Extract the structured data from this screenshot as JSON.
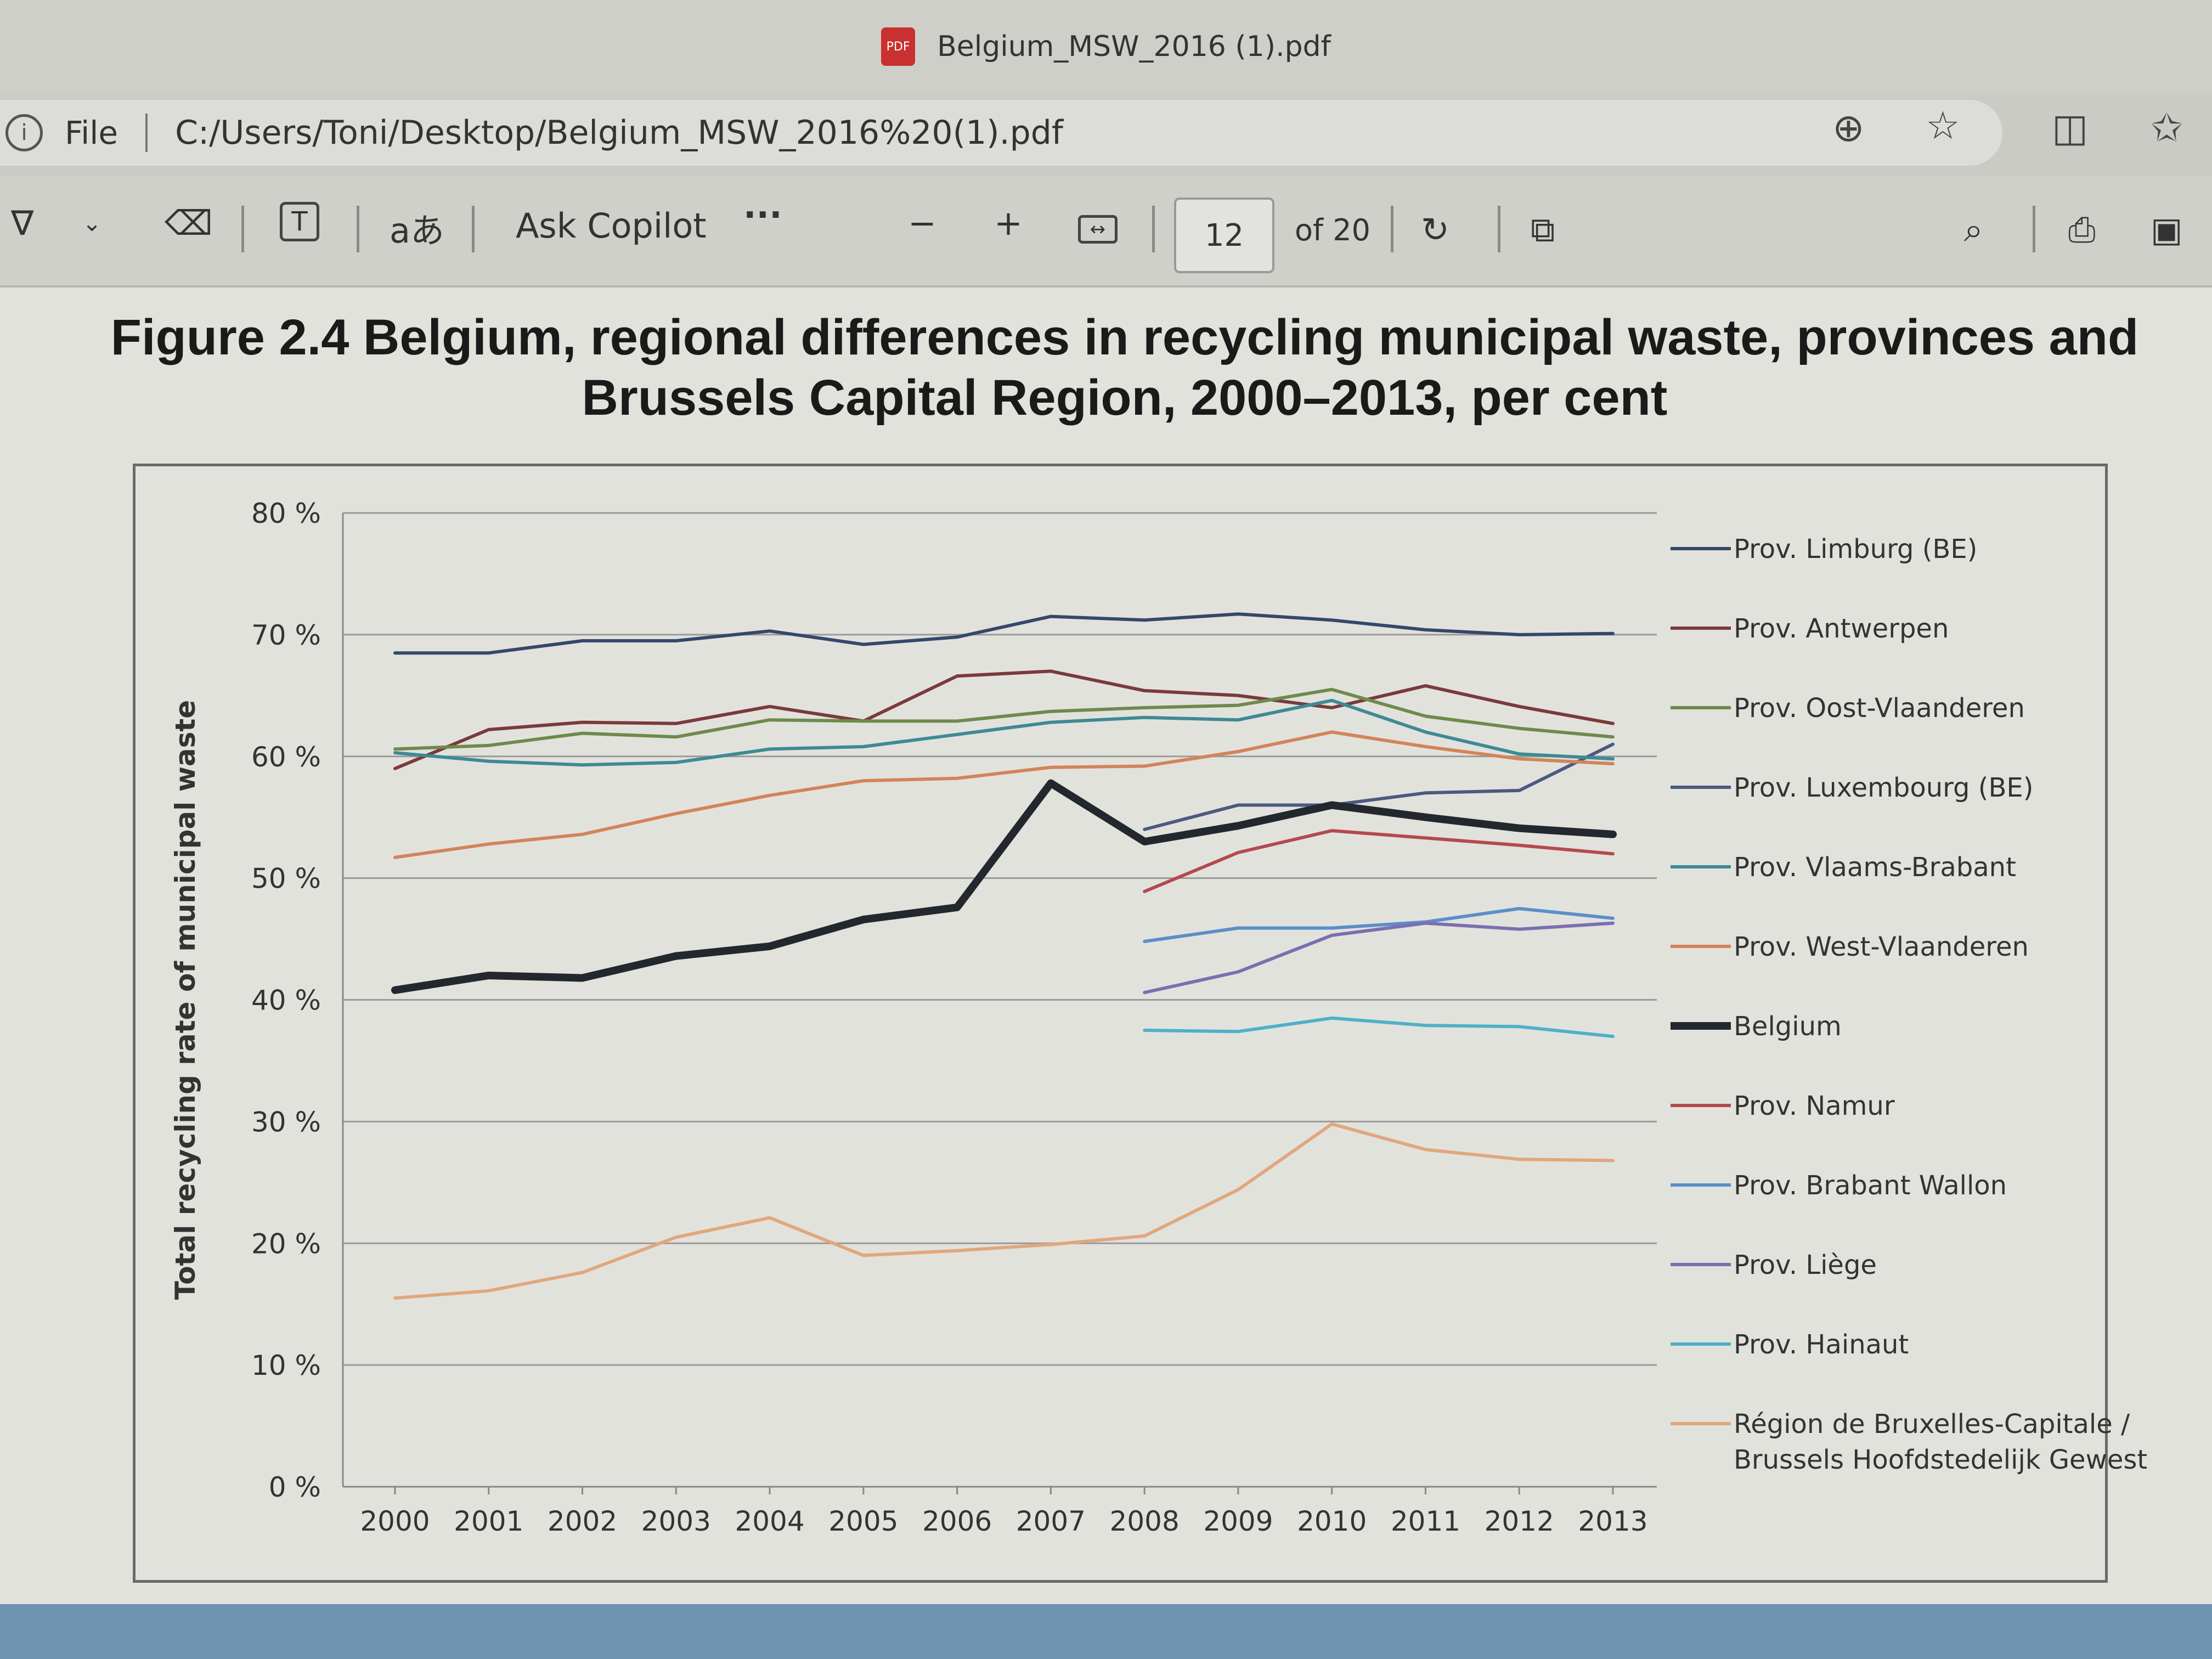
{
  "window": {
    "title": "Belgium_MSW_2016 (1).pdf",
    "pdf_badge": "PDF"
  },
  "address_bar": {
    "file_label": "File",
    "url": "C:/Users/Toni/Desktop/Belgium_MSW_2016%20(1).pdf"
  },
  "toolbar": {
    "ask_copilot": "Ask Copilot",
    "more": "···",
    "zoom_out": "−",
    "zoom_in": "+",
    "page_number": "12",
    "page_total": "of 20",
    "read_aloud_glyph": "aあ"
  },
  "icons": {
    "draw": "draw-icon",
    "erase": "eraser-icon",
    "text": "text-box-icon",
    "translate": "translate-icon",
    "fit": "fit-width-icon",
    "rotate": "rotate-icon",
    "two_page": "page-view-icon",
    "search": "search-icon",
    "print": "print-icon",
    "save": "save-icon",
    "zoom_page": "zoom-icon",
    "favorite": "star-icon",
    "split": "split-screen-icon",
    "favorites": "favorites-icon"
  },
  "colors": {
    "limburg": "#34486b",
    "antwerpen": "#7a3a3c",
    "oost": "#6f8a4c",
    "luxembourg": "#4a5a80",
    "vlaams": "#3e8a94",
    "west": "#d2845a",
    "belgium": "#23272e",
    "namur": "#b5494e",
    "brabant_wallon": "#5a8fc7",
    "liege": "#7b6fb0",
    "hainaut": "#4fb0c8",
    "bruxelles": "#e0a77d"
  },
  "chart_data": {
    "type": "line",
    "title": "Figure 2.4 Belgium, regional differences in recycling municipal waste, provinces and Brussels Capital Region, 2000–2013, per cent",
    "title_line1": "Figure 2.4 Belgium, regional differences in recycling municipal waste, provinces and",
    "title_line2": "Brussels Capital Region, 2000–2013, per cent",
    "xlabel": "",
    "ylabel": "Total recycling rate of municipal waste",
    "ylim": [
      0,
      80
    ],
    "yticks": [
      "0 %",
      "10 %",
      "20 %",
      "30 %",
      "40 %",
      "50 %",
      "60 %",
      "70 %",
      "80 %"
    ],
    "x": [
      "2000",
      "2001",
      "2002",
      "2003",
      "2004",
      "2005",
      "2006",
      "2007",
      "2008",
      "2009",
      "2010",
      "2011",
      "2012",
      "2013"
    ],
    "legend_position": "right",
    "series": [
      {
        "name": "Prov. Limburg (BE)",
        "color_key": "limburg",
        "width": 6,
        "values": [
          68.5,
          68.5,
          69.5,
          69.5,
          70.3,
          69.2,
          69.8,
          71.5,
          71.2,
          71.7,
          71.2,
          70.4,
          70.0,
          70.1
        ]
      },
      {
        "name": "Prov. Antwerpen",
        "color_key": "antwerpen",
        "width": 6,
        "values": [
          59.0,
          62.2,
          62.8,
          62.7,
          64.1,
          62.9,
          66.6,
          67.0,
          65.4,
          65.0,
          64.0,
          65.8,
          64.1,
          62.7
        ]
      },
      {
        "name": "Prov. Oost-Vlaanderen",
        "color_key": "oost",
        "width": 6,
        "values": [
          60.6,
          60.9,
          61.9,
          61.6,
          63.0,
          62.9,
          62.9,
          63.7,
          64.0,
          64.2,
          65.5,
          63.3,
          62.3,
          61.6
        ]
      },
      {
        "name": "Prov. Luxembourg (BE)",
        "color_key": "luxembourg",
        "width": 6,
        "values": [
          null,
          null,
          null,
          null,
          null,
          null,
          null,
          null,
          54.0,
          56.0,
          56.0,
          57.0,
          57.2,
          61.0
        ]
      },
      {
        "name": "Prov. Vlaams-Brabant",
        "color_key": "vlaams",
        "width": 6,
        "values": [
          60.3,
          59.6,
          59.3,
          59.5,
          60.6,
          60.8,
          61.8,
          62.8,
          63.2,
          63.0,
          64.6,
          62.0,
          60.2,
          59.8
        ]
      },
      {
        "name": "Prov. West-Vlaanderen",
        "color_key": "west",
        "width": 6,
        "values": [
          51.7,
          52.8,
          53.6,
          55.3,
          56.8,
          58.0,
          58.2,
          59.1,
          59.2,
          60.4,
          62.0,
          60.8,
          59.8,
          59.4
        ]
      },
      {
        "name": "Belgium",
        "color_key": "belgium",
        "width": 14,
        "values": [
          40.8,
          42.0,
          41.8,
          43.6,
          44.4,
          46.6,
          47.6,
          57.8,
          53.0,
          54.3,
          56.0,
          55.0,
          54.1,
          53.6
        ]
      },
      {
        "name": "Prov. Namur",
        "color_key": "namur",
        "width": 6,
        "values": [
          null,
          null,
          null,
          null,
          null,
          null,
          null,
          null,
          48.9,
          52.1,
          53.9,
          53.3,
          52.7,
          52.0
        ]
      },
      {
        "name": "Prov. Brabant Wallon",
        "color_key": "brabant_wallon",
        "width": 6,
        "values": [
          null,
          null,
          null,
          null,
          null,
          null,
          null,
          null,
          44.8,
          45.9,
          45.9,
          46.4,
          47.5,
          46.7
        ]
      },
      {
        "name": "Prov. Liège",
        "color_key": "liege",
        "width": 6,
        "values": [
          null,
          null,
          null,
          null,
          null,
          null,
          null,
          null,
          40.6,
          42.3,
          45.3,
          46.3,
          45.8,
          46.3
        ]
      },
      {
        "name": "Prov. Hainaut",
        "color_key": "hainaut",
        "width": 6,
        "values": [
          null,
          null,
          null,
          null,
          null,
          null,
          null,
          null,
          37.5,
          37.4,
          38.5,
          37.9,
          37.8,
          37.0
        ]
      },
      {
        "name": "Région de Bruxelles-Capitale / Brussels Hoofdstedelijk Gewest",
        "name_line1": "Région de Bruxelles-Capitale /",
        "name_line2": "Brussels Hoofdstedelijk Gewest",
        "color_key": "bruxelles",
        "width": 6,
        "values": [
          15.5,
          16.1,
          17.6,
          20.5,
          22.1,
          19.0,
          19.4,
          19.9,
          20.6,
          24.4,
          29.8,
          27.7,
          26.9,
          26.8
        ]
      }
    ]
  }
}
